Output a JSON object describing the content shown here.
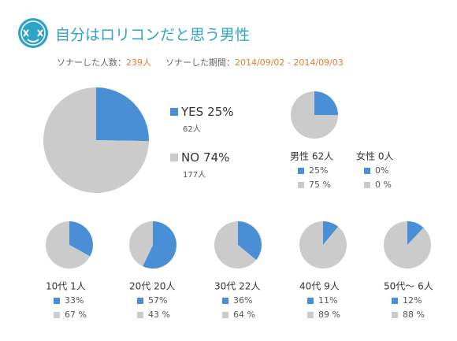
{
  "header": {
    "title": "自分はロリコンだと思う男性",
    "respondents_label": "ソナーした人数：",
    "respondents": "239人",
    "period_label": "ソナーした期間：",
    "period": "2014/09/02 - 2014/09/03"
  },
  "chart_data": [
    {
      "type": "pie",
      "categories": [
        "YES",
        "NO"
      ],
      "values": [
        25,
        74
      ],
      "value_labels": [
        "25%",
        "74%"
      ],
      "counts": [
        62,
        177
      ],
      "count_labels": [
        "62人",
        "177人"
      ],
      "colors": [
        "#4a8fd6",
        "#cbcbcb"
      ]
    },
    {
      "type": "pie",
      "title": "男性 62人",
      "values": [
        25,
        75
      ],
      "value_labels": [
        "25%",
        "75 %"
      ],
      "colors": [
        "#4a8fd6",
        "#cbcbcb"
      ]
    },
    {
      "type": "pie",
      "title": "女性 0人",
      "values": [
        0,
        0
      ],
      "value_labels": [
        "0%",
        "0 %"
      ],
      "colors": [
        "#4a8fd6",
        "#cbcbcb"
      ]
    },
    {
      "type": "pie",
      "title": "10代 1人",
      "values": [
        33,
        67
      ],
      "value_labels": [
        "33%",
        "67 %"
      ],
      "colors": [
        "#4a8fd6",
        "#cbcbcb"
      ]
    },
    {
      "type": "pie",
      "title": "20代 20人",
      "values": [
        57,
        43
      ],
      "value_labels": [
        "57%",
        "43 %"
      ],
      "colors": [
        "#4a8fd6",
        "#cbcbcb"
      ]
    },
    {
      "type": "pie",
      "title": "30代 22人",
      "values": [
        36,
        64
      ],
      "value_labels": [
        "36%",
        "64 %"
      ],
      "colors": [
        "#4a8fd6",
        "#cbcbcb"
      ]
    },
    {
      "type": "pie",
      "title": "40代 9人",
      "values": [
        11,
        89
      ],
      "value_labels": [
        "11%",
        "89 %"
      ],
      "colors": [
        "#4a8fd6",
        "#cbcbcb"
      ]
    },
    {
      "type": "pie",
      "title": "50代～ 6人",
      "values": [
        12,
        88
      ],
      "value_labels": [
        "12%",
        "88 %"
      ],
      "colors": [
        "#4a8fd6",
        "#cbcbcb"
      ]
    }
  ]
}
